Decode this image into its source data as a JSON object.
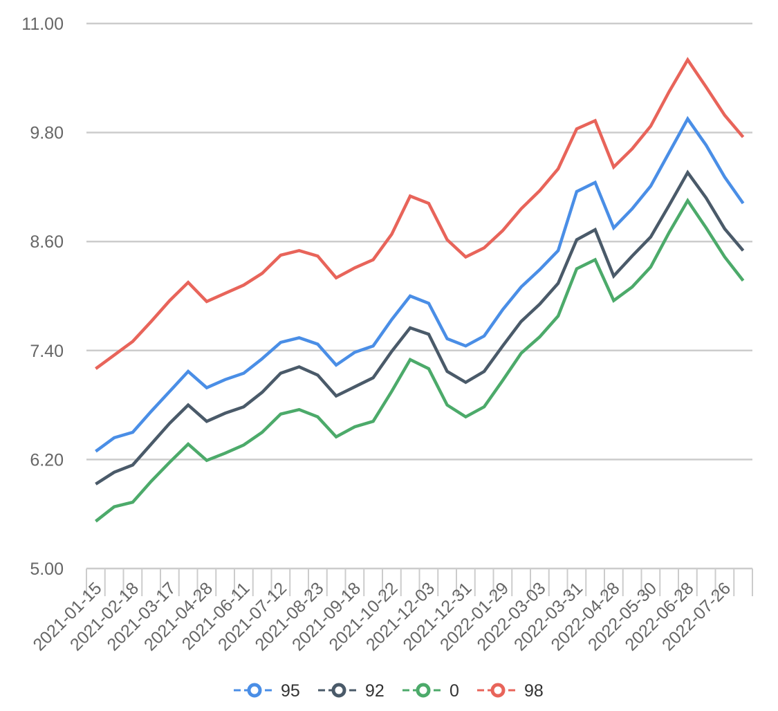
{
  "chart_data": {
    "type": "line",
    "title": "",
    "xlabel": "",
    "ylabel": "",
    "ylim": [
      5.0,
      11.0
    ],
    "yticks": [
      "5.00",
      "6.20",
      "7.40",
      "8.60",
      "9.80",
      "11.00"
    ],
    "x_tick_labels": [
      "2021-01-15",
      "2021-02-18",
      "2021-03-17",
      "2021-04-28",
      "2021-06-11",
      "2021-07-12",
      "2021-08-23",
      "2021-09-18",
      "2021-10-22",
      "2021-12-03",
      "2021-12-31",
      "2022-01-29",
      "2022-03-03",
      "2022-03-31",
      "2022-04-28",
      "2022-05-30",
      "2022-06-28",
      "2022-07-26"
    ],
    "grid": true,
    "legend_position": "bottom",
    "series": [
      {
        "name": "95",
        "color": "#4a8ee6",
        "values": [
          6.29,
          6.44,
          6.5,
          6.73,
          6.95,
          7.17,
          6.99,
          7.08,
          7.15,
          7.31,
          7.49,
          7.54,
          7.47,
          7.24,
          7.38,
          7.45,
          7.74,
          8.0,
          7.92,
          7.53,
          7.45,
          7.56,
          7.85,
          8.1,
          8.29,
          8.5,
          9.15,
          9.25,
          8.75,
          8.96,
          9.21,
          9.58,
          9.95,
          9.66,
          9.31,
          9.02
        ]
      },
      {
        "name": "92",
        "color": "#4a5a69",
        "values": [
          5.93,
          6.06,
          6.14,
          6.37,
          6.6,
          6.8,
          6.62,
          6.71,
          6.78,
          6.94,
          7.15,
          7.22,
          7.13,
          6.9,
          7.0,
          7.1,
          7.39,
          7.65,
          7.58,
          7.17,
          7.05,
          7.17,
          7.45,
          7.72,
          7.91,
          8.14,
          8.62,
          8.73,
          8.22,
          8.44,
          8.65,
          9.0,
          9.36,
          9.08,
          8.74,
          8.5
        ]
      },
      {
        "name": "0",
        "color": "#4caa6a",
        "values": [
          5.52,
          5.68,
          5.73,
          5.96,
          6.17,
          6.37,
          6.19,
          6.27,
          6.36,
          6.5,
          6.7,
          6.75,
          6.67,
          6.45,
          6.56,
          6.62,
          6.95,
          7.3,
          7.2,
          6.8,
          6.67,
          6.78,
          7.07,
          7.37,
          7.55,
          7.78,
          8.3,
          8.4,
          7.95,
          8.1,
          8.32,
          8.7,
          9.05,
          8.75,
          8.43,
          8.17
        ]
      },
      {
        "name": "98",
        "color": "#e8645a",
        "values": [
          7.2,
          7.35,
          7.5,
          7.72,
          7.95,
          8.15,
          7.94,
          8.03,
          8.12,
          8.25,
          8.45,
          8.5,
          8.44,
          8.2,
          8.31,
          8.4,
          8.68,
          9.1,
          9.02,
          8.62,
          8.43,
          8.53,
          8.72,
          8.96,
          9.16,
          9.4,
          9.84,
          9.93,
          9.42,
          9.62,
          9.87,
          10.25,
          10.6,
          10.3,
          9.99,
          9.75
        ]
      }
    ]
  }
}
